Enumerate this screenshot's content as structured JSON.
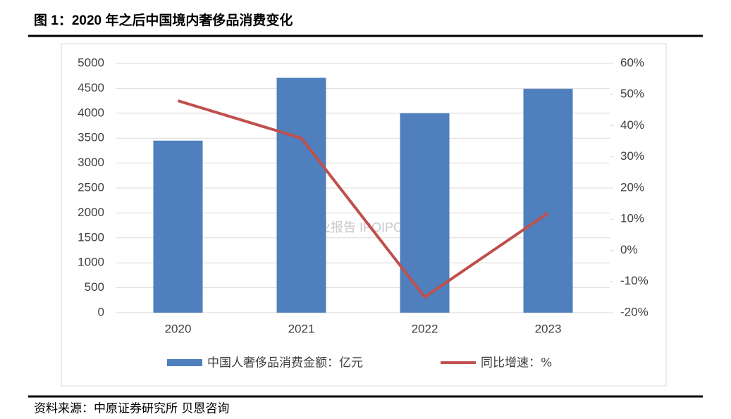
{
  "header": {
    "title": "图 1：2020 年之后中国境内奢侈品消费变化"
  },
  "chart_data": {
    "type": "bar-line",
    "categories": [
      "2020",
      "2021",
      "2022",
      "2023"
    ],
    "series": [
      {
        "name": "中国人奢侈品消费金额：亿元",
        "type": "bar",
        "color": "#4f7fbc",
        "values": [
          3450,
          4710,
          4000,
          4490
        ]
      },
      {
        "name": "同比增速：%",
        "type": "line",
        "axis": "y2",
        "color": "#c0504d",
        "values": [
          48,
          36,
          -15,
          12
        ]
      }
    ],
    "ylim": [
      0,
      5000
    ],
    "yticks": [
      0,
      500,
      1000,
      1500,
      2000,
      2500,
      3000,
      3500,
      4000,
      4500,
      5000
    ],
    "y2lim": [
      -20,
      60
    ],
    "y2ticks": [
      {
        "value": -20,
        "label": "-20%"
      },
      {
        "value": -10,
        "label": "-10%"
      },
      {
        "value": 0,
        "label": "0%"
      },
      {
        "value": 10,
        "label": "10%"
      },
      {
        "value": 20,
        "label": "20%"
      },
      {
        "value": 30,
        "label": "30%"
      },
      {
        "value": 40,
        "label": "40%"
      },
      {
        "value": 50,
        "label": "50%"
      },
      {
        "value": 60,
        "label": "60%"
      }
    ],
    "grid": true,
    "legend": "bottom",
    "watermark": "行业报告 IPOIPO.CN"
  },
  "footer": {
    "source": "资料来源：中原证券研究所 贝恩咨询"
  }
}
